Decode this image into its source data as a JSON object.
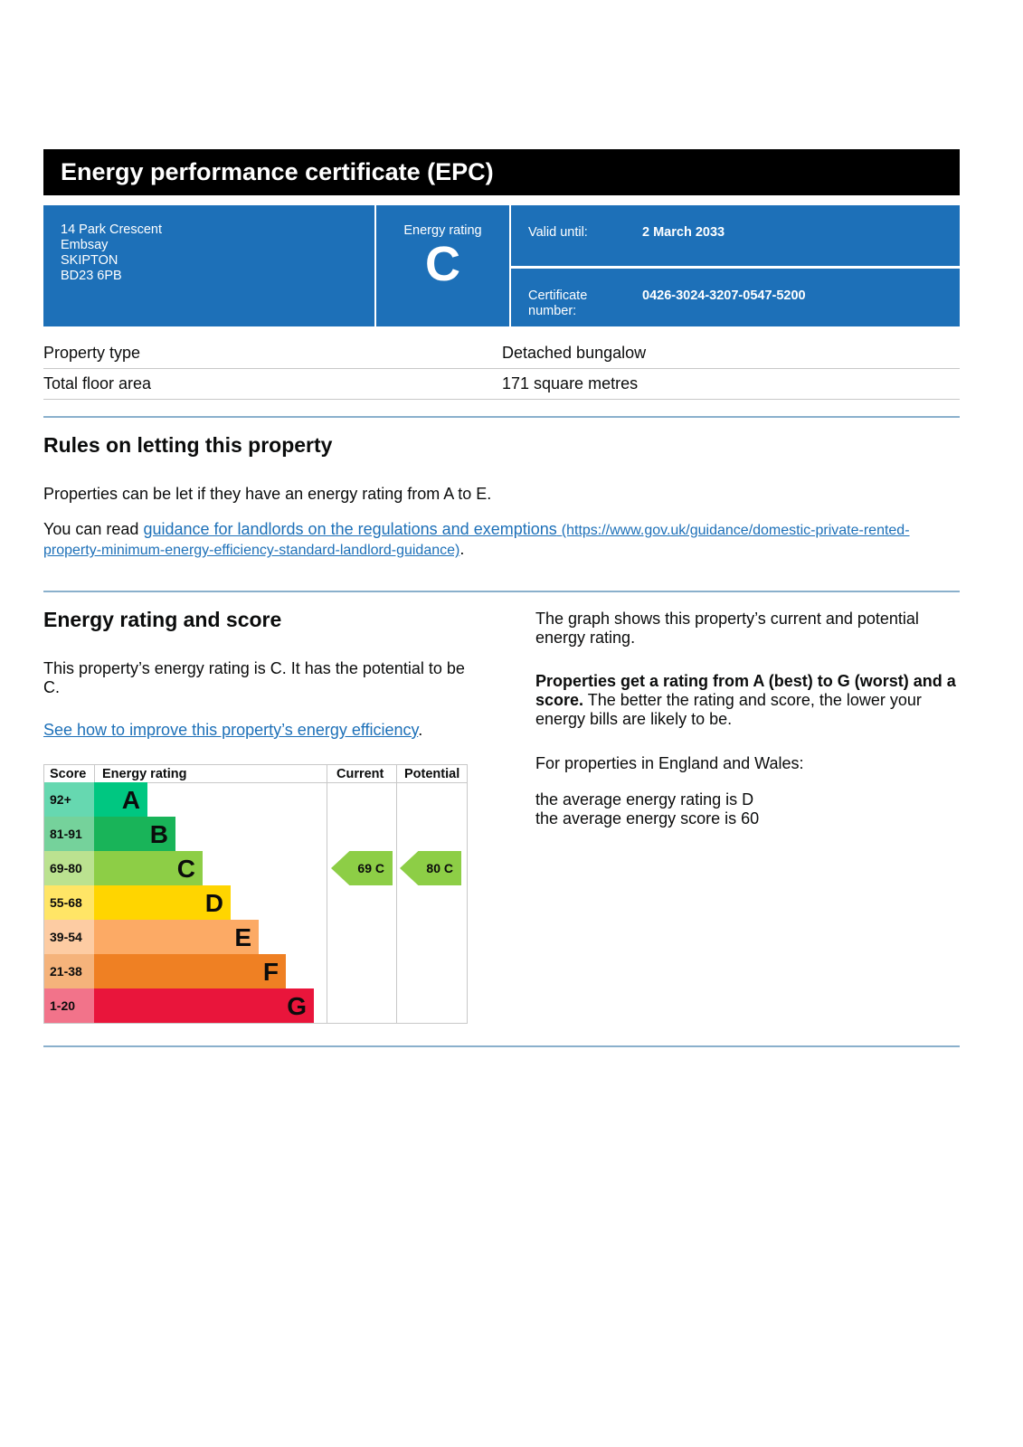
{
  "title": "Energy performance certificate (EPC)",
  "address": [
    "14 Park Crescent",
    "Embsay",
    "SKIPTON",
    "BD23 6PB"
  ],
  "energy_rating": {
    "label": "Energy rating",
    "value": "C"
  },
  "valid_until": {
    "label": "Valid until:",
    "value": "2 March 2033"
  },
  "certificate": {
    "label": "Certificate number:",
    "value": "0426-3024-3207-0547-5200"
  },
  "property": [
    {
      "label": "Property type",
      "value": "Detached bungalow"
    },
    {
      "label": "Total floor area",
      "value": "171 square metres"
    }
  ],
  "rules": {
    "heading": "Rules on letting this property",
    "text": "Properties can be let if they have an energy rating from A to E.",
    "read_prefix": "You can read ",
    "link_text": "guidance for landlords on the regulations and exemptions",
    "link_url": "(https://www.gov.uk/guidance/domestic-private-rented-property-minimum-energy-efficiency-standard-landlord-guidance)",
    "suffix": "."
  },
  "score_section": {
    "heading": "Energy rating and score",
    "text": "This property’s energy rating is C. It has the potential to be C.",
    "link": "See how to improve this property’s energy efficiency",
    "link_suffix": ".",
    "right_p1": "The graph shows this property’s current and potential energy rating.",
    "right_p2_bold": "Properties get a rating from A (best) to G (worst) and a score.",
    "right_p2": " The better the rating and score, the lower your energy bills are likely to be.",
    "right_p3": "For properties in England and Wales:",
    "right_p4a": "the average energy rating is D",
    "right_p4b": "the average energy score is 60"
  },
  "chart_data": {
    "type": "table",
    "headers": {
      "score": "Score",
      "rating": "Energy rating",
      "current": "Current",
      "potential": "Potential"
    },
    "bands": [
      {
        "score": "92+",
        "letter": "A",
        "color": "#00c781",
        "light": "#66d8b0"
      },
      {
        "score": "81-91",
        "letter": "B",
        "color": "#19b459",
        "light": "#75d29b"
      },
      {
        "score": "69-80",
        "letter": "C",
        "color": "#8dce46",
        "light": "#bbe290"
      },
      {
        "score": "55-68",
        "letter": "D",
        "color": "#ffd500",
        "light": "#ffe566"
      },
      {
        "score": "39-54",
        "letter": "E",
        "color": "#fcaa65",
        "light": "#fdccA3"
      },
      {
        "score": "21-38",
        "letter": "F",
        "color": "#ef8023",
        "light": "#f5b37b"
      },
      {
        "score": "1-20",
        "letter": "G",
        "color": "#e9153b",
        "light": "#f2738a"
      }
    ],
    "current": {
      "score": 69,
      "letter": "C",
      "label": "69  C"
    },
    "potential": {
      "score": 80,
      "letter": "C",
      "label": "80  C"
    }
  }
}
